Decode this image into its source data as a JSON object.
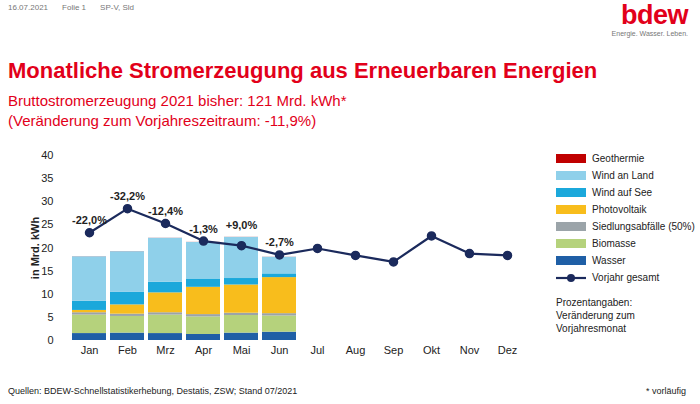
{
  "chart_data": {
    "type": "bar",
    "stacked": true,
    "header": [
      "16.07.2021",
      "Folie 1",
      "SP-V, Sld"
    ],
    "logo": {
      "name": "bdew",
      "tagline": "Energie. Wasser. Leben."
    },
    "title": "Monatliche Stromerzeugung aus Erneuerbaren Energien",
    "subtitle": [
      "Bruttostromerzeugung 2021 bisher: 121 Mrd. kWh*",
      "(Veränderung zum Vorjahreszeitraum: -11,9%)"
    ],
    "ylabel": "in Mrd. kWh",
    "categories": [
      "Jan",
      "Feb",
      "Mrz",
      "Apr",
      "Mai",
      "Jun",
      "Jul",
      "Aug",
      "Sep",
      "Okt",
      "Nov",
      "Dez"
    ],
    "ylim": [
      0,
      40
    ],
    "yticks": [
      0,
      5,
      10,
      15,
      20,
      25,
      30,
      35,
      40
    ],
    "grid": false,
    "legend": "right",
    "series": [
      {
        "name": "Geothermie",
        "type": "bar",
        "color": "#c00000",
        "values": [
          0.02,
          0.02,
          0.02,
          0.02,
          0.02,
          0.02,
          null,
          null,
          null,
          null,
          null,
          null
        ]
      },
      {
        "name": "Wind an Land",
        "type": "bar",
        "color": "#8fd0ea",
        "values": [
          9.6,
          8.8,
          9.5,
          7.9,
          8.9,
          3.6,
          null,
          null,
          null,
          null,
          null,
          null
        ]
      },
      {
        "name": "Wind auf See",
        "type": "bar",
        "color": "#1ba8db",
        "values": [
          2.0,
          2.7,
          2.3,
          1.8,
          1.4,
          0.8,
          null,
          null,
          null,
          null,
          null,
          null
        ]
      },
      {
        "name": "Photovoltaik",
        "type": "bar",
        "color": "#f8bd1c",
        "values": [
          0.5,
          2.0,
          4.3,
          5.9,
          6.1,
          7.8,
          null,
          null,
          null,
          null,
          null,
          null
        ]
      },
      {
        "name": "Siedlungsabfälle (50%)",
        "type": "bar",
        "color": "#9ba4a9",
        "values": [
          0.5,
          0.5,
          0.5,
          0.5,
          0.5,
          0.5,
          null,
          null,
          null,
          null,
          null,
          null
        ]
      },
      {
        "name": "Biomasse",
        "type": "bar",
        "color": "#b5d27c",
        "values": [
          4.0,
          3.6,
          4.0,
          3.8,
          3.8,
          3.5,
          null,
          null,
          null,
          null,
          null,
          null
        ]
      },
      {
        "name": "Wasser",
        "type": "bar",
        "color": "#1f5fa6",
        "values": [
          1.5,
          1.6,
          1.5,
          1.3,
          1.6,
          1.8,
          null,
          null,
          null,
          null,
          null,
          null
        ]
      },
      {
        "name": "Vorjahr gesamt",
        "type": "line",
        "color": "#1b2a5c",
        "marker": "circle",
        "line_style": "solid",
        "values": [
          23.3,
          28.5,
          25.3,
          21.5,
          20.5,
          18.5,
          19.9,
          18.4,
          17.0,
          22.6,
          18.8,
          18.4
        ]
      }
    ],
    "annotations": [
      {
        "category": "Jan",
        "text": "-22,0%"
      },
      {
        "category": "Feb",
        "text": "-32,2%"
      },
      {
        "category": "Mrz",
        "text": "-12,4%"
      },
      {
        "category": "Apr",
        "text": "-1,3%"
      },
      {
        "category": "Mai",
        "text": "+9,0%"
      },
      {
        "category": "Jun",
        "text": "-2,7%"
      }
    ],
    "legend_note": [
      "Prozentangaben:",
      "Veränderung zum",
      "Vorjahresmonat"
    ],
    "source": "Quellen: BDEW-Schnellstatistikerhebung, Destatis, ZSW; Stand 07/2021",
    "footnote": "* vorläufig"
  }
}
